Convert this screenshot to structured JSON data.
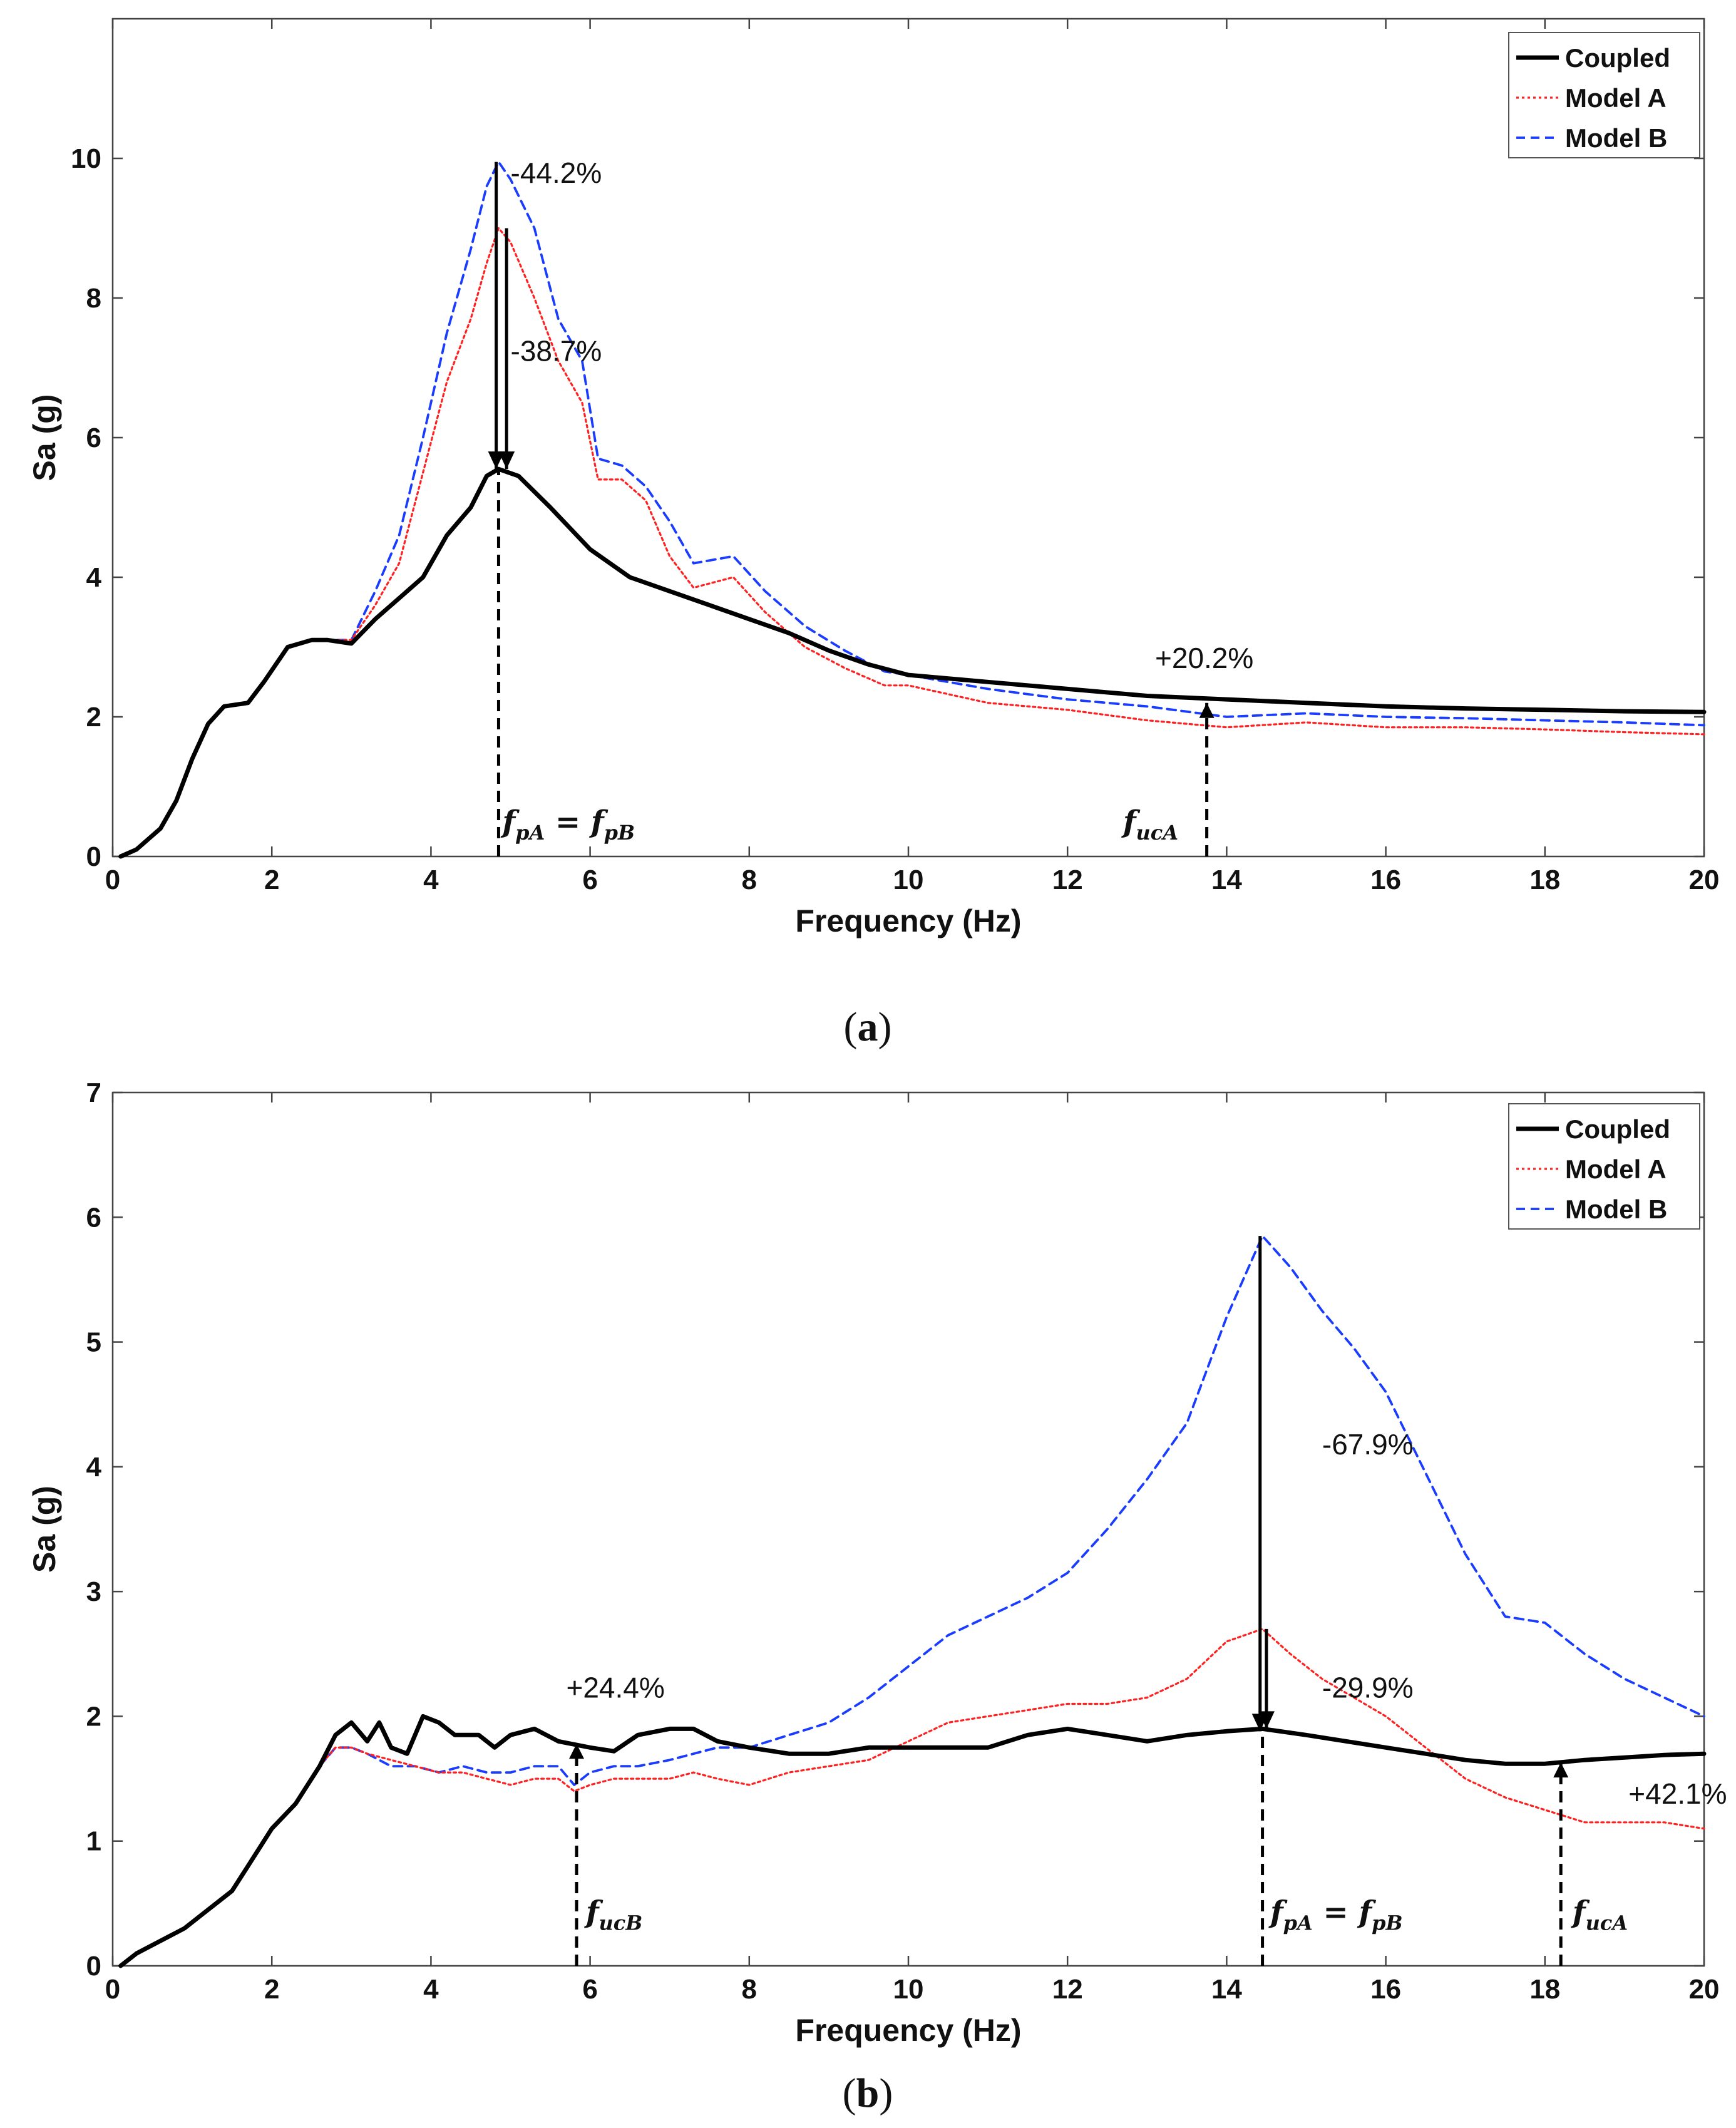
{
  "panel_captions": [
    {
      "open": "(",
      "letter": "a",
      "close": ")"
    },
    {
      "open": "(",
      "letter": "b",
      "close": ")"
    }
  ],
  "chart_data": [
    {
      "type": "line",
      "panel": "a",
      "title": "",
      "xlabel": "Frequency (Hz)",
      "ylabel": "Sa (g)",
      "xlim": [
        0,
        20
      ],
      "ylim": [
        0,
        12
      ],
      "xticks": [
        0,
        2,
        4,
        6,
        8,
        10,
        12,
        14,
        16,
        18,
        20
      ],
      "yticks": [
        0,
        2,
        4,
        6,
        8,
        10
      ],
      "legend": {
        "position": "top-right",
        "entries": [
          "Coupled",
          "Model A",
          "Model B"
        ]
      },
      "series": [
        {
          "name": "Coupled",
          "color": "#000000",
          "style": "solid",
          "x": [
            0.1,
            0.3,
            0.6,
            0.8,
            1.0,
            1.2,
            1.4,
            1.7,
            1.9,
            2.2,
            2.5,
            2.7,
            3.0,
            3.3,
            3.6,
            3.9,
            4.2,
            4.5,
            4.7,
            4.85,
            5.1,
            5.5,
            6.0,
            6.5,
            7.0,
            7.5,
            8.0,
            8.5,
            9.0,
            9.5,
            10.0,
            11,
            12,
            13,
            14,
            15,
            16,
            17,
            18,
            19,
            20
          ],
          "y": [
            0.0,
            0.1,
            0.4,
            0.8,
            1.4,
            1.9,
            2.15,
            2.2,
            2.5,
            3.0,
            3.1,
            3.1,
            3.05,
            3.4,
            3.7,
            4.0,
            4.6,
            5.0,
            5.45,
            5.55,
            5.45,
            5.0,
            4.4,
            4.0,
            3.8,
            3.6,
            3.4,
            3.2,
            2.95,
            2.75,
            2.6,
            2.5,
            2.4,
            2.3,
            2.25,
            2.2,
            2.15,
            2.12,
            2.1,
            2.08,
            2.07
          ]
        },
        {
          "name": "Model A",
          "color": "#ff2020",
          "style": "dotted",
          "x": [
            0.1,
            0.3,
            0.6,
            0.8,
            1.0,
            1.2,
            1.4,
            1.7,
            1.9,
            2.2,
            2.5,
            2.7,
            3.0,
            3.3,
            3.6,
            3.9,
            4.2,
            4.5,
            4.7,
            4.85,
            5.0,
            5.3,
            5.6,
            5.9,
            6.1,
            6.4,
            6.7,
            7.0,
            7.3,
            7.8,
            8.2,
            8.7,
            9.2,
            9.7,
            10.0,
            11,
            12,
            13,
            14,
            15,
            16,
            17,
            18,
            19,
            20
          ],
          "y": [
            0.0,
            0.1,
            0.4,
            0.8,
            1.4,
            1.9,
            2.15,
            2.2,
            2.5,
            3.0,
            3.1,
            3.1,
            3.1,
            3.6,
            4.2,
            5.5,
            6.8,
            7.7,
            8.5,
            9.0,
            8.8,
            8.0,
            7.1,
            6.5,
            5.4,
            5.4,
            5.1,
            4.3,
            3.85,
            4.0,
            3.5,
            3.0,
            2.7,
            2.45,
            2.45,
            2.2,
            2.1,
            1.95,
            1.85,
            1.92,
            1.85,
            1.85,
            1.82,
            1.78,
            1.75
          ]
        },
        {
          "name": "Model B",
          "color": "#1a3cff",
          "style": "dashed",
          "x": [
            0.1,
            0.3,
            0.6,
            0.8,
            1.0,
            1.2,
            1.4,
            1.7,
            1.9,
            2.2,
            2.5,
            2.7,
            3.0,
            3.3,
            3.6,
            3.9,
            4.2,
            4.5,
            4.7,
            4.85,
            5.0,
            5.3,
            5.6,
            5.9,
            6.1,
            6.4,
            6.7,
            7.0,
            7.3,
            7.8,
            8.2,
            8.7,
            9.2,
            9.7,
            10.0,
            11,
            12,
            13,
            14,
            15,
            16,
            17,
            18,
            19,
            20
          ],
          "y": [
            0.0,
            0.1,
            0.4,
            0.8,
            1.4,
            1.9,
            2.15,
            2.2,
            2.5,
            3.0,
            3.1,
            3.1,
            3.1,
            3.8,
            4.6,
            6.0,
            7.5,
            8.7,
            9.6,
            9.95,
            9.7,
            9.0,
            7.7,
            7.1,
            5.7,
            5.6,
            5.3,
            4.8,
            4.2,
            4.3,
            3.8,
            3.3,
            2.95,
            2.65,
            2.6,
            2.4,
            2.25,
            2.15,
            2.0,
            2.05,
            2.0,
            1.98,
            1.95,
            1.92,
            1.88
          ]
        }
      ],
      "annotations": [
        {
          "text": "-44.2%",
          "x": 5.0,
          "y": 9.65
        },
        {
          "text": "-38.7%",
          "x": 5.0,
          "y": 7.1
        },
        {
          "text": "+20.2%",
          "x": 13.1,
          "y": 2.7
        },
        {
          "text_main": "f",
          "sub1": "pA",
          "eq": " = f",
          "sub2": "pB",
          "x": 4.85,
          "y": 0.35
        },
        {
          "text_main": "f",
          "sub1": "ucA",
          "x": 12.65,
          "y": 0.35
        }
      ]
    },
    {
      "type": "line",
      "panel": "b",
      "title": "",
      "xlabel": "Frequency (Hz)",
      "ylabel": "Sa (g)",
      "xlim": [
        0,
        20
      ],
      "ylim": [
        0,
        7
      ],
      "xticks": [
        0,
        2,
        4,
        6,
        8,
        10,
        12,
        14,
        16,
        18,
        20
      ],
      "yticks": [
        0,
        1,
        2,
        3,
        4,
        5,
        6,
        7
      ],
      "legend": {
        "position": "top-right",
        "entries": [
          "Coupled",
          "Model A",
          "Model B"
        ]
      },
      "series": [
        {
          "name": "Coupled",
          "color": "#000000",
          "style": "solid",
          "x": [
            0.1,
            0.3,
            0.6,
            0.9,
            1.2,
            1.5,
            1.7,
            2.0,
            2.3,
            2.6,
            2.8,
            3.0,
            3.2,
            3.35,
            3.5,
            3.7,
            3.9,
            4.1,
            4.3,
            4.6,
            4.8,
            5.0,
            5.3,
            5.6,
            6.0,
            6.3,
            6.6,
            7.0,
            7.3,
            7.6,
            8.0,
            8.5,
            9.0,
            9.5,
            10.0,
            11.0,
            11.5,
            12.0,
            12.5,
            13.0,
            13.5,
            14.0,
            14.45,
            15.0,
            15.5,
            16.0,
            16.5,
            17.0,
            17.5,
            18.0,
            18.5,
            19.0,
            19.5,
            20.0
          ],
          "y": [
            0.0,
            0.1,
            0.2,
            0.3,
            0.45,
            0.6,
            0.8,
            1.1,
            1.3,
            1.6,
            1.85,
            1.95,
            1.8,
            1.95,
            1.75,
            1.7,
            2.0,
            1.95,
            1.85,
            1.85,
            1.75,
            1.85,
            1.9,
            1.8,
            1.75,
            1.72,
            1.85,
            1.9,
            1.9,
            1.8,
            1.75,
            1.7,
            1.7,
            1.75,
            1.75,
            1.75,
            1.85,
            1.9,
            1.85,
            1.8,
            1.85,
            1.88,
            1.9,
            1.85,
            1.8,
            1.75,
            1.7,
            1.65,
            1.62,
            1.62,
            1.65,
            1.67,
            1.69,
            1.7
          ]
        },
        {
          "name": "Model A",
          "color": "#ff2020",
          "style": "dotted",
          "x": [
            0.1,
            0.3,
            0.6,
            0.9,
            1.2,
            1.5,
            1.7,
            2.0,
            2.3,
            2.6,
            2.8,
            3.0,
            3.2,
            3.5,
            3.8,
            4.1,
            4.4,
            4.7,
            5.0,
            5.3,
            5.6,
            5.8,
            6.0,
            6.3,
            6.6,
            7.0,
            7.3,
            7.6,
            8.0,
            8.5,
            9.0,
            9.5,
            10.0,
            10.5,
            11.0,
            11.5,
            12.0,
            12.5,
            13.0,
            13.5,
            14.0,
            14.45,
            14.8,
            15.2,
            15.6,
            16.0,
            16.5,
            17.0,
            17.5,
            18.0,
            18.5,
            19.0,
            19.5,
            20.0
          ],
          "y": [
            0.0,
            0.1,
            0.2,
            0.3,
            0.45,
            0.6,
            0.8,
            1.1,
            1.3,
            1.6,
            1.75,
            1.75,
            1.7,
            1.65,
            1.6,
            1.55,
            1.55,
            1.5,
            1.45,
            1.5,
            1.5,
            1.4,
            1.45,
            1.5,
            1.5,
            1.5,
            1.55,
            1.5,
            1.45,
            1.55,
            1.6,
            1.65,
            1.8,
            1.95,
            2.0,
            2.05,
            2.1,
            2.1,
            2.15,
            2.3,
            2.6,
            2.7,
            2.5,
            2.3,
            2.15,
            2.0,
            1.75,
            1.5,
            1.35,
            1.25,
            1.15,
            1.15,
            1.15,
            1.1
          ]
        },
        {
          "name": "Model B",
          "color": "#1a3cff",
          "style": "dashed",
          "x": [
            0.1,
            0.3,
            0.6,
            0.9,
            1.2,
            1.5,
            1.7,
            2.0,
            2.3,
            2.6,
            2.8,
            3.0,
            3.2,
            3.5,
            3.8,
            4.1,
            4.4,
            4.7,
            5.0,
            5.3,
            5.6,
            5.8,
            6.0,
            6.3,
            6.6,
            7.0,
            7.3,
            7.6,
            8.0,
            8.5,
            9.0,
            9.5,
            10.0,
            10.5,
            11.0,
            11.5,
            12.0,
            12.5,
            13.0,
            13.5,
            14.0,
            14.45,
            14.8,
            15.2,
            15.6,
            16.0,
            16.5,
            17.0,
            17.5,
            18.0,
            18.5,
            19.0,
            19.5,
            20.0
          ],
          "y": [
            0.0,
            0.1,
            0.2,
            0.3,
            0.45,
            0.6,
            0.8,
            1.1,
            1.3,
            1.6,
            1.75,
            1.75,
            1.7,
            1.6,
            1.6,
            1.55,
            1.6,
            1.55,
            1.55,
            1.6,
            1.6,
            1.45,
            1.55,
            1.6,
            1.6,
            1.65,
            1.7,
            1.75,
            1.75,
            1.85,
            1.95,
            2.15,
            2.4,
            2.65,
            2.8,
            2.95,
            3.15,
            3.5,
            3.9,
            4.35,
            5.2,
            5.85,
            5.6,
            5.25,
            4.95,
            4.6,
            3.95,
            3.3,
            2.8,
            2.75,
            2.5,
            2.3,
            2.15,
            2.0
          ]
        }
      ],
      "annotations": [
        {
          "text": "+24.4%",
          "x": 5.7,
          "y": 2.15
        },
        {
          "text": "-67.9%",
          "x": 15.2,
          "y": 4.1
        },
        {
          "text": "-29.9%",
          "x": 15.2,
          "y": 2.15
        },
        {
          "text": "+42.1%",
          "x": 19.05,
          "y": 1.3
        },
        {
          "text_main": "f",
          "sub1": "ucB",
          "x": 5.9,
          "y": 0.35
        },
        {
          "text_main": "f",
          "sub1": "pA",
          "eq": " = f",
          "sub2": "pB",
          "x": 14.5,
          "y": 0.35
        },
        {
          "text_main": "f",
          "sub1": "ucA",
          "x": 18.3,
          "y": 0.35
        }
      ]
    }
  ]
}
